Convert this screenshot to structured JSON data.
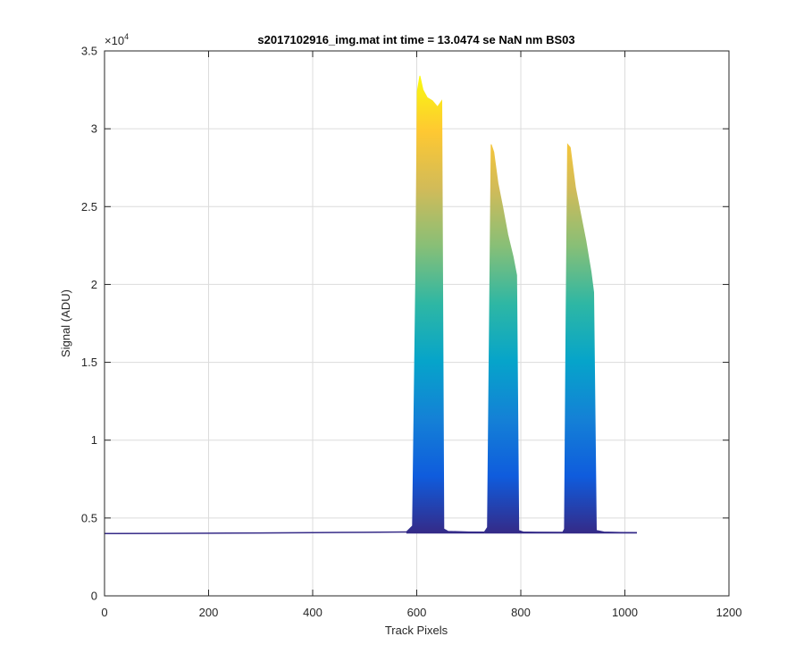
{
  "chart_data": {
    "type": "area",
    "title": "s2017102916_img.mat int time = 13.0474 se  NaN nm BS03",
    "xlabel": "Track Pixels",
    "ylabel": "Signal (ADU)",
    "xlim": [
      0,
      1200
    ],
    "ylim": [
      0,
      35000
    ],
    "y_exponent_label": "×10",
    "y_exponent_power": "4",
    "grid": true,
    "colormap": "parula",
    "colormap_colors": [
      "#352a87",
      "#0f5cdd",
      "#1481d6",
      "#06a4ca",
      "#2eb7a4",
      "#87bf77",
      "#d1bb59",
      "#fec832",
      "#f9fb0e"
    ],
    "x_ticks": [
      0,
      200,
      400,
      600,
      800,
      1000,
      1200
    ],
    "x_tick_labels": [
      "0",
      "200",
      "400",
      "600",
      "800",
      "1000",
      "1200"
    ],
    "y_ticks": [
      0,
      5000,
      10000,
      15000,
      20000,
      25000,
      30000,
      35000
    ],
    "y_tick_labels": [
      "0",
      "0.5",
      "1",
      "1.5",
      "2",
      "2.5",
      "3",
      "3.5"
    ],
    "baseline": {
      "x": [
        0,
        100,
        200,
        300,
        400,
        500,
        580,
        1023
      ],
      "y": [
        4000,
        4010,
        4020,
        4040,
        4060,
        4080,
        4100,
        4060
      ]
    },
    "series": [
      {
        "x": [
          580,
          592,
          598,
          601,
          606,
          612,
          620,
          630,
          640,
          648,
          652,
          660,
          700,
          730
        ],
        "y": [
          4100,
          4500,
          20000,
          32400,
          33400,
          32500,
          32000,
          31800,
          31400,
          31800,
          4300,
          4150,
          4100,
          4100
        ]
      },
      {
        "x": [
          730,
          736,
          740,
          743,
          748,
          756,
          765,
          775,
          785,
          792,
          796,
          805,
          850,
          880
        ],
        "y": [
          4100,
          4400,
          18000,
          29000,
          28500,
          26500,
          25000,
          23200,
          21800,
          20600,
          4200,
          4100,
          4050,
          4050
        ]
      },
      {
        "x": [
          880,
          884,
          887,
          890,
          895,
          905,
          915,
          925,
          935,
          940,
          945,
          960,
          1000,
          1023
        ],
        "y": [
          4050,
          4300,
          18000,
          29000,
          28800,
          26200,
          24500,
          22800,
          20800,
          19500,
          4200,
          4100,
          4070,
          4060
        ]
      }
    ]
  }
}
